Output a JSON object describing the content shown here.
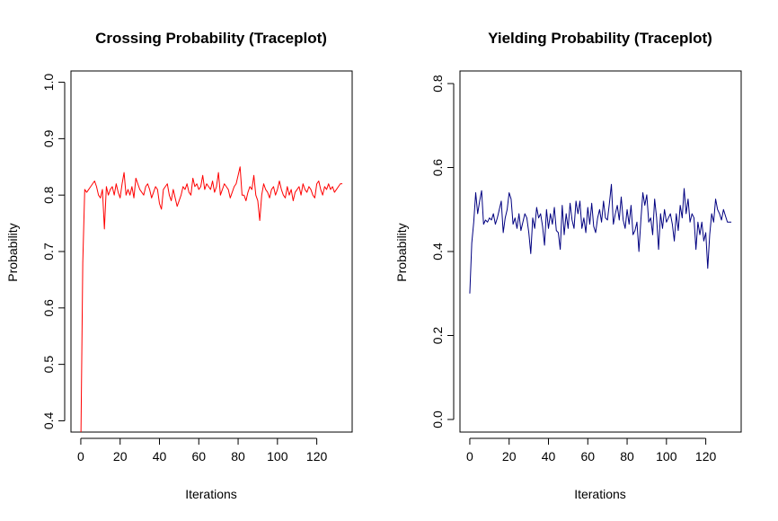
{
  "chart_data": [
    {
      "type": "line",
      "title": "Crossing Probability (Traceplot)",
      "xlabel": "Iterations",
      "ylabel": "Probability",
      "xlim": [
        -5,
        138
      ],
      "ylim": [
        0.38,
        1.02
      ],
      "xticks": [
        "0",
        "20",
        "40",
        "60",
        "80",
        "100",
        "120"
      ],
      "yticks": [
        "0.4",
        "0.5",
        "0.6",
        "0.7",
        "0.8",
        "0.9",
        "1.0"
      ],
      "color": "#ff0000",
      "series": [
        {
          "x": [
            0,
            1,
            2,
            3,
            4,
            5,
            6,
            7,
            8,
            9,
            10,
            11,
            12,
            13,
            14,
            15,
            16,
            17,
            18,
            19,
            20,
            21,
            22,
            23,
            24,
            25,
            26,
            27,
            28,
            29,
            30,
            31,
            32,
            33,
            34,
            35,
            36,
            37,
            38,
            39,
            40,
            41,
            42,
            43,
            44,
            45,
            46,
            47,
            48,
            49,
            50,
            51,
            52,
            53,
            54,
            55,
            56,
            57,
            58,
            59,
            60,
            61,
            62,
            63,
            64,
            65,
            66,
            67,
            68,
            69,
            70,
            71,
            72,
            73,
            74,
            75,
            76,
            77,
            78,
            79,
            80,
            81,
            82,
            83,
            84,
            85,
            86,
            87,
            88,
            89,
            90,
            91,
            92,
            93,
            94,
            95,
            96,
            97,
            98,
            99,
            100,
            101,
            102,
            103,
            104,
            105,
            106,
            107,
            108,
            109,
            110,
            111,
            112,
            113,
            114,
            115,
            116,
            117,
            118,
            119,
            120,
            121,
            122,
            123,
            124,
            125,
            126,
            127,
            128,
            129,
            130,
            131,
            132,
            133
          ],
          "y": [
            0.35,
            0.68,
            0.81,
            0.805,
            0.81,
            0.815,
            0.82,
            0.825,
            0.815,
            0.8,
            0.795,
            0.81,
            0.74,
            0.815,
            0.8,
            0.81,
            0.815,
            0.8,
            0.82,
            0.805,
            0.795,
            0.82,
            0.84,
            0.8,
            0.81,
            0.8,
            0.815,
            0.795,
            0.83,
            0.82,
            0.81,
            0.805,
            0.8,
            0.815,
            0.82,
            0.81,
            0.795,
            0.805,
            0.815,
            0.81,
            0.785,
            0.775,
            0.81,
            0.815,
            0.82,
            0.8,
            0.79,
            0.81,
            0.795,
            0.78,
            0.79,
            0.8,
            0.815,
            0.81,
            0.82,
            0.805,
            0.8,
            0.83,
            0.815,
            0.82,
            0.81,
            0.815,
            0.835,
            0.81,
            0.82,
            0.815,
            0.81,
            0.825,
            0.805,
            0.815,
            0.84,
            0.8,
            0.81,
            0.82,
            0.815,
            0.81,
            0.795,
            0.805,
            0.815,
            0.82,
            0.835,
            0.85,
            0.8,
            0.8,
            0.79,
            0.805,
            0.815,
            0.81,
            0.835,
            0.8,
            0.79,
            0.755,
            0.8,
            0.82,
            0.81,
            0.805,
            0.795,
            0.81,
            0.815,
            0.8,
            0.81,
            0.825,
            0.81,
            0.8,
            0.795,
            0.815,
            0.8,
            0.81,
            0.79,
            0.805,
            0.81,
            0.815,
            0.8,
            0.82,
            0.81,
            0.805,
            0.815,
            0.81,
            0.8,
            0.795,
            0.82,
            0.825,
            0.81,
            0.8,
            0.815,
            0.81,
            0.82,
            0.81,
            0.815,
            0.805,
            0.81,
            0.815,
            0.82,
            0.82
          ]
        }
      ]
    },
    {
      "type": "line",
      "title": "Yielding Probability (Traceplot)",
      "xlabel": "Iterations",
      "ylabel": "Probability",
      "xlim": [
        -5,
        138
      ],
      "ylim": [
        -0.03,
        0.83
      ],
      "xticks": [
        "0",
        "20",
        "40",
        "60",
        "80",
        "100",
        "120"
      ],
      "yticks": [
        "0.0",
        "0.2",
        "0.4",
        "0.6",
        "0.8"
      ],
      "color": "#000080",
      "series": [
        {
          "x": [
            0,
            1,
            2,
            3,
            4,
            5,
            6,
            7,
            8,
            9,
            10,
            11,
            12,
            13,
            14,
            15,
            16,
            17,
            18,
            19,
            20,
            21,
            22,
            23,
            24,
            25,
            26,
            27,
            28,
            29,
            30,
            31,
            32,
            33,
            34,
            35,
            36,
            37,
            38,
            39,
            40,
            41,
            42,
            43,
            44,
            45,
            46,
            47,
            48,
            49,
            50,
            51,
            52,
            53,
            54,
            55,
            56,
            57,
            58,
            59,
            60,
            61,
            62,
            63,
            64,
            65,
            66,
            67,
            68,
            69,
            70,
            71,
            72,
            73,
            74,
            75,
            76,
            77,
            78,
            79,
            80,
            81,
            82,
            83,
            84,
            85,
            86,
            87,
            88,
            89,
            90,
            91,
            92,
            93,
            94,
            95,
            96,
            97,
            98,
            99,
            100,
            101,
            102,
            103,
            104,
            105,
            106,
            107,
            108,
            109,
            110,
            111,
            112,
            113,
            114,
            115,
            116,
            117,
            118,
            119,
            120,
            121,
            122,
            123,
            124,
            125,
            126,
            127,
            128,
            129,
            130,
            131,
            132,
            133
          ],
          "y": [
            0.3,
            0.42,
            0.47,
            0.54,
            0.49,
            0.52,
            0.545,
            0.465,
            0.475,
            0.47,
            0.48,
            0.475,
            0.49,
            0.465,
            0.48,
            0.5,
            0.52,
            0.445,
            0.48,
            0.5,
            0.54,
            0.525,
            0.465,
            0.48,
            0.455,
            0.49,
            0.45,
            0.47,
            0.49,
            0.48,
            0.445,
            0.395,
            0.48,
            0.455,
            0.505,
            0.48,
            0.49,
            0.46,
            0.415,
            0.5,
            0.455,
            0.49,
            0.465,
            0.505,
            0.45,
            0.445,
            0.405,
            0.51,
            0.44,
            0.49,
            0.455,
            0.515,
            0.475,
            0.455,
            0.52,
            0.49,
            0.52,
            0.455,
            0.48,
            0.445,
            0.505,
            0.465,
            0.515,
            0.46,
            0.445,
            0.48,
            0.5,
            0.47,
            0.52,
            0.48,
            0.475,
            0.515,
            0.56,
            0.465,
            0.49,
            0.51,
            0.475,
            0.53,
            0.475,
            0.455,
            0.5,
            0.465,
            0.51,
            0.44,
            0.45,
            0.47,
            0.4,
            0.475,
            0.54,
            0.51,
            0.535,
            0.47,
            0.48,
            0.44,
            0.525,
            0.48,
            0.405,
            0.49,
            0.455,
            0.5,
            0.47,
            0.48,
            0.49,
            0.465,
            0.425,
            0.49,
            0.45,
            0.51,
            0.48,
            0.55,
            0.49,
            0.525,
            0.47,
            0.49,
            0.48,
            0.405,
            0.47,
            0.44,
            0.47,
            0.425,
            0.445,
            0.36,
            0.44,
            0.49,
            0.47,
            0.525,
            0.5,
            0.49,
            0.475,
            0.5,
            0.485,
            0.47,
            0.47,
            0.47
          ]
        }
      ]
    }
  ]
}
